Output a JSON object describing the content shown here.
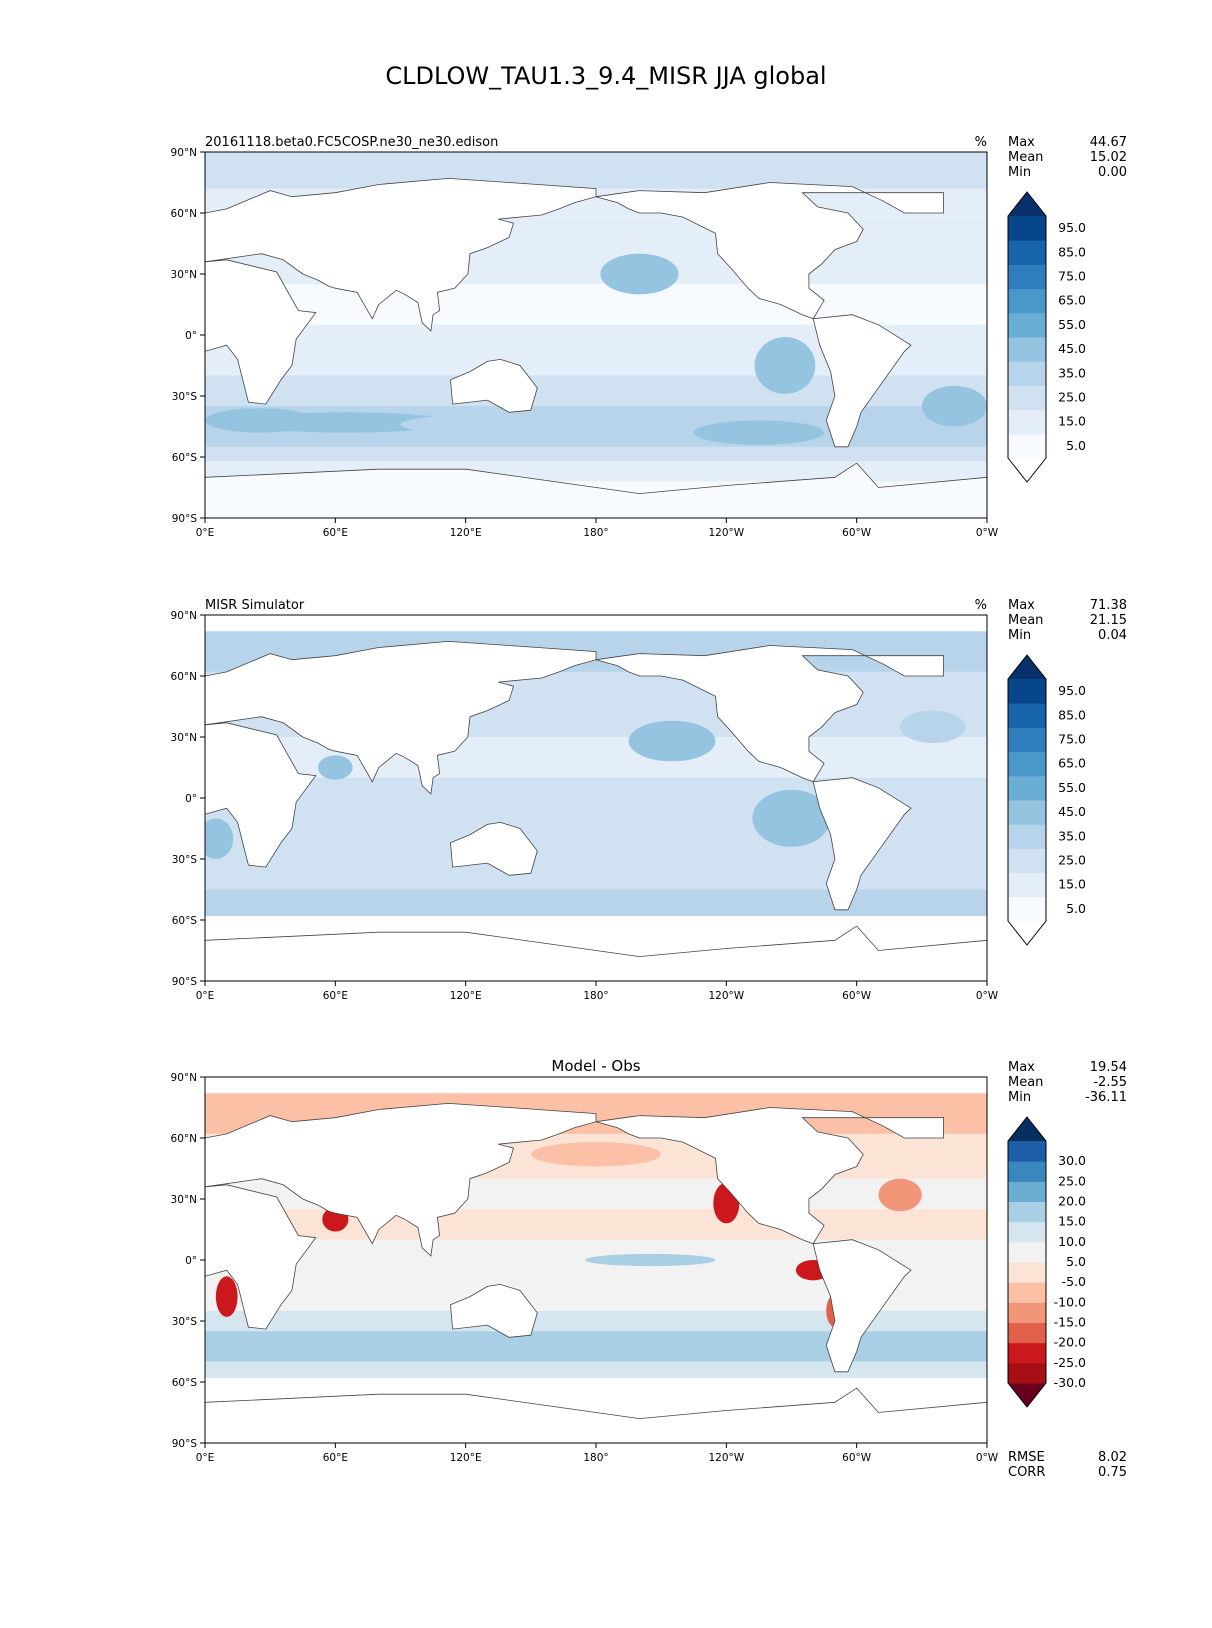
{
  "figure_title": "CLDLOW_TAU1.3_9.4_MISR JJA global",
  "panels": [
    {
      "left_title": "20161118.beta0.FC5COSP.ne30_ne30.edison",
      "center_title": "",
      "units": "%",
      "stats": [
        {
          "label": "Max",
          "value": "44.67"
        },
        {
          "label": "Mean",
          "value": "15.02"
        },
        {
          "label": "Min",
          "value": "0.00"
        }
      ],
      "colorbar": {
        "ticks": [
          "95.0",
          "85.0",
          "75.0",
          "65.0",
          "55.0",
          "45.0",
          "35.0",
          "25.0",
          "15.0",
          "5.0"
        ],
        "colors": [
          "#f7fbff",
          "#e3eef9",
          "#d0e1f2",
          "#b7d4ea",
          "#94c4df",
          "#6aaed6",
          "#4a98c9",
          "#2e7ebc",
          "#1764ab",
          "#08468b"
        ],
        "over_color": "#08306b",
        "under_color": "#ffffff"
      },
      "bottom_stats": []
    },
    {
      "left_title": "MISR Simulator",
      "center_title": "",
      "units": "%",
      "stats": [
        {
          "label": "Max",
          "value": "71.38"
        },
        {
          "label": "Mean",
          "value": "21.15"
        },
        {
          "label": "Min",
          "value": "0.04"
        }
      ],
      "colorbar": {
        "ticks": [
          "95.0",
          "85.0",
          "75.0",
          "65.0",
          "55.0",
          "45.0",
          "35.0",
          "25.0",
          "15.0",
          "5.0"
        ],
        "colors": [
          "#f7fbff",
          "#e3eef9",
          "#d0e1f2",
          "#b7d4ea",
          "#94c4df",
          "#6aaed6",
          "#4a98c9",
          "#2e7ebc",
          "#1764ab",
          "#08468b"
        ],
        "over_color": "#08306b",
        "under_color": "#ffffff"
      },
      "bottom_stats": []
    },
    {
      "left_title": "",
      "center_title": "Model - Obs",
      "units": "",
      "stats": [
        {
          "label": "Max",
          "value": "19.54"
        },
        {
          "label": "Mean",
          "value": "-2.55"
        },
        {
          "label": "Min",
          "value": "-36.11"
        }
      ],
      "colorbar": {
        "ticks": [
          "30.0",
          "25.0",
          "20.0",
          "15.0",
          "10.0",
          "5.0",
          "-5.0",
          "-10.0",
          "-15.0",
          "-20.0",
          "-25.0",
          "-30.0"
        ],
        "colors": [
          "#a50f15",
          "#cb181d",
          "#e0604a",
          "#f2967a",
          "#fcc0a6",
          "#fbe3d6",
          "#f2f2f2",
          "#d5e6f0",
          "#a9cfe5",
          "#6caed2",
          "#3a87be",
          "#1d5ea6"
        ],
        "over_color": "#053061",
        "under_color": "#67001f"
      },
      "bottom_stats": [
        {
          "label": "RMSE",
          "value": "8.02"
        },
        {
          "label": "CORR",
          "value": "0.75"
        }
      ]
    }
  ],
  "axes": {
    "lat_ticks": [
      "90°N",
      "60°N",
      "30°N",
      "0°",
      "30°S",
      "60°S",
      "90°S"
    ],
    "lon_ticks": [
      "0°E",
      "60°E",
      "120°E",
      "180°",
      "120°W",
      "60°W",
      "0°W"
    ]
  },
  "chart_data": [
    {
      "type": "heatmap",
      "title": "20161118.beta0.FC5COSP.ne30_ne30.edison",
      "units": "%",
      "x": "longitude",
      "y": "latitude",
      "xlim": [
        0,
        360
      ],
      "ylim": [
        -90,
        90
      ],
      "max": 44.67,
      "mean": 15.02,
      "min": 0.0,
      "levels": [
        0,
        5,
        15,
        25,
        35,
        45,
        55,
        65,
        75,
        85,
        95,
        100
      ],
      "colormap": "Blues"
    },
    {
      "type": "heatmap",
      "title": "MISR Simulator",
      "units": "%",
      "x": "longitude",
      "y": "latitude",
      "xlim": [
        0,
        360
      ],
      "ylim": [
        -90,
        90
      ],
      "max": 71.38,
      "mean": 21.15,
      "min": 0.04,
      "levels": [
        0,
        5,
        15,
        25,
        35,
        45,
        55,
        65,
        75,
        85,
        95,
        100
      ],
      "colormap": "Blues"
    },
    {
      "type": "heatmap",
      "title": "Model - Obs",
      "x": "longitude",
      "y": "latitude",
      "xlim": [
        0,
        360
      ],
      "ylim": [
        -90,
        90
      ],
      "max": 19.54,
      "mean": -2.55,
      "min": -36.11,
      "rmse": 8.02,
      "corr": 0.75,
      "levels": [
        -35,
        -30,
        -25,
        -20,
        -15,
        -10,
        -5,
        5,
        10,
        15,
        20,
        25,
        30,
        35
      ],
      "colormap": "RdBu_r"
    }
  ]
}
